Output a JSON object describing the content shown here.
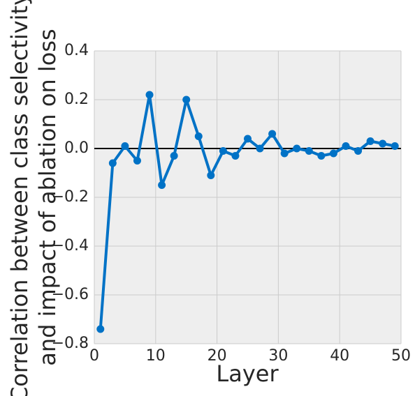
{
  "chart_data": {
    "type": "line",
    "xlabel": "Layer",
    "ylabel": [
      "Correlation between class selectivity",
      "and impact of ablation on loss"
    ],
    "x": [
      1,
      3,
      5,
      7,
      9,
      11,
      13,
      15,
      17,
      19,
      21,
      23,
      25,
      27,
      29,
      31,
      33,
      35,
      37,
      39,
      41,
      43,
      45,
      47,
      49
    ],
    "series": [
      {
        "color": "#0072c6",
        "values": [
          -0.74,
          -0.06,
          0.01,
          -0.05,
          0.22,
          -0.15,
          -0.03,
          0.2,
          0.05,
          -0.11,
          -0.01,
          -0.03,
          0.04,
          0.0,
          0.06,
          -0.02,
          0.0,
          -0.01,
          -0.03,
          -0.02,
          0.01,
          -0.01,
          0.03,
          0.02,
          0.01
        ]
      }
    ],
    "xlim": [
      0,
      50
    ],
    "xticks": [
      0,
      10,
      20,
      30,
      40,
      50
    ],
    "ylim": [
      -0.8,
      0.4
    ],
    "yticks": [
      {
        "value": -0.8,
        "label": "−0.8"
      },
      {
        "value": -0.6,
        "label": "−0.6"
      },
      {
        "value": -0.4,
        "label": "−0.4"
      },
      {
        "value": -0.2,
        "label": "−0.2"
      },
      {
        "value": 0,
        "label": "0.0"
      },
      0.2,
      0.4
    ],
    "reference_line": 0,
    "grid": true
  }
}
